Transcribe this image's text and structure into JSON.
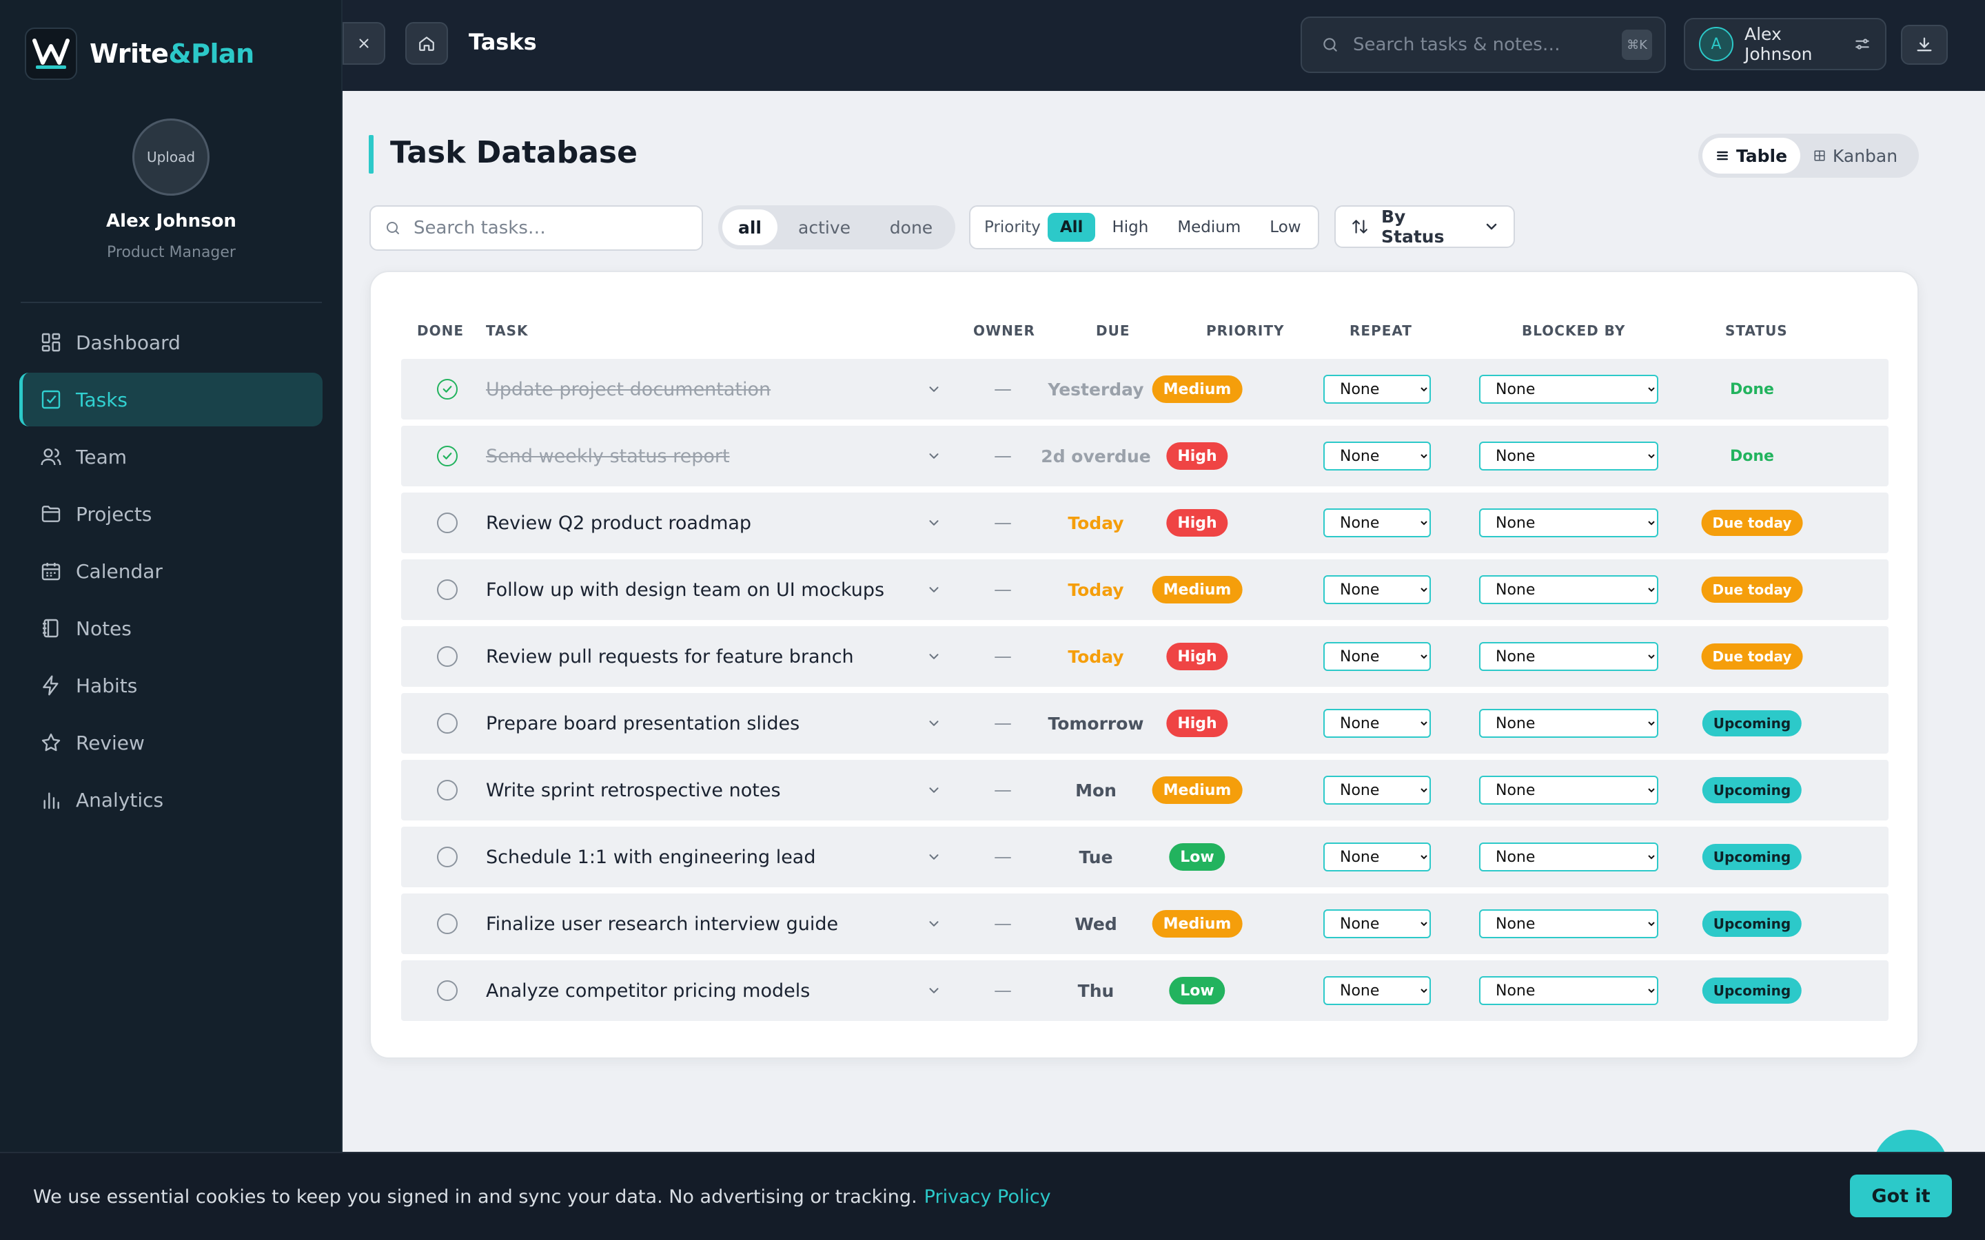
{
  "brand": {
    "name_part1": "Write",
    "name_part2": "&Plan"
  },
  "profile": {
    "upload_label": "Upload",
    "name": "Alex Johnson",
    "role": "Product Manager"
  },
  "sidebar": {
    "items": [
      {
        "label": "Dashboard",
        "icon": "grid-icon"
      },
      {
        "label": "Tasks",
        "icon": "checkbox-icon",
        "active": true
      },
      {
        "label": "Team",
        "icon": "users-icon"
      },
      {
        "label": "Projects",
        "icon": "folder-icon"
      },
      {
        "label": "Calendar",
        "icon": "calendar-icon"
      },
      {
        "label": "Notes",
        "icon": "notebook-icon"
      },
      {
        "label": "Habits",
        "icon": "bolt-icon"
      },
      {
        "label": "Review",
        "icon": "star-icon"
      },
      {
        "label": "Analytics",
        "icon": "bar-chart-icon"
      }
    ]
  },
  "topbar": {
    "title": "Tasks",
    "search_placeholder": "Search tasks & notes…",
    "search_shortcut": "⌘K",
    "user_initial": "A",
    "user_name": "Alex Johnson"
  },
  "main": {
    "heading": "Task Database",
    "view_toggle": {
      "table": "Table",
      "kanban": "Kanban",
      "selected": "Table"
    },
    "search_placeholder": "Search tasks…",
    "state_filter": {
      "all": "all",
      "active": "active",
      "done": "done",
      "selected": "all"
    },
    "priority_filter": {
      "label": "Priority",
      "all": "All",
      "high": "High",
      "medium": "Medium",
      "low": "Low",
      "selected": "All"
    },
    "sort_label": "By Status"
  },
  "table": {
    "headers": {
      "done": "DONE",
      "task": "TASK",
      "owner": "OWNER",
      "due": "DUE",
      "priority": "PRIORITY",
      "repeat": "REPEAT",
      "blocked_by": "BLOCKED BY",
      "status": "STATUS"
    },
    "rows": [
      {
        "done": true,
        "task": "Update project documentation",
        "owner": "—",
        "due": "Yesterday",
        "due_tone": "muted",
        "priority": "Medium",
        "repeat": "None",
        "blocked_by": "None",
        "status": "Done",
        "status_kind": "done"
      },
      {
        "done": true,
        "task": "Send weekly status report",
        "owner": "—",
        "due": "2d overdue",
        "due_tone": "muted",
        "priority": "High",
        "repeat": "None",
        "blocked_by": "None",
        "status": "Done",
        "status_kind": "done"
      },
      {
        "done": false,
        "task": "Review Q2 product roadmap",
        "owner": "—",
        "due": "Today",
        "due_tone": "today",
        "priority": "High",
        "repeat": "None",
        "blocked_by": "None",
        "status": "Due today",
        "status_kind": "today"
      },
      {
        "done": false,
        "task": "Follow up with design team on UI mockups",
        "owner": "—",
        "due": "Today",
        "due_tone": "today",
        "priority": "Medium",
        "repeat": "None",
        "blocked_by": "None",
        "status": "Due today",
        "status_kind": "today"
      },
      {
        "done": false,
        "task": "Review pull requests for feature branch",
        "owner": "—",
        "due": "Today",
        "due_tone": "today",
        "priority": "High",
        "repeat": "None",
        "blocked_by": "None",
        "status": "Due today",
        "status_kind": "today"
      },
      {
        "done": false,
        "task": "Prepare board presentation slides",
        "owner": "—",
        "due": "Tomorrow",
        "due_tone": "normal",
        "priority": "High",
        "repeat": "None",
        "blocked_by": "None",
        "status": "Upcoming",
        "status_kind": "upcoming"
      },
      {
        "done": false,
        "task": "Write sprint retrospective notes",
        "owner": "—",
        "due": "Mon",
        "due_tone": "normal",
        "priority": "Medium",
        "repeat": "None",
        "blocked_by": "None",
        "status": "Upcoming",
        "status_kind": "upcoming"
      },
      {
        "done": false,
        "task": "Schedule 1:1 with engineering lead",
        "owner": "—",
        "due": "Tue",
        "due_tone": "normal",
        "priority": "Low",
        "repeat": "None",
        "blocked_by": "None",
        "status": "Upcoming",
        "status_kind": "upcoming"
      },
      {
        "done": false,
        "task": "Finalize user research interview guide",
        "owner": "—",
        "due": "Wed",
        "due_tone": "normal",
        "priority": "Medium",
        "repeat": "None",
        "blocked_by": "None",
        "status": "Upcoming",
        "status_kind": "upcoming"
      },
      {
        "done": false,
        "task": "Analyze competitor pricing models",
        "owner": "—",
        "due": "Thu",
        "due_tone": "normal",
        "priority": "Low",
        "repeat": "None",
        "blocked_by": "None",
        "status": "Upcoming",
        "status_kind": "upcoming"
      }
    ]
  },
  "cookie": {
    "text": "We use essential cookies to keep you signed in and sync your data. No advertising or tracking.",
    "link": "Privacy Policy",
    "button": "Got it"
  },
  "colors": {
    "accent": "#2cc9c9",
    "sidebar_bg": "#14202b",
    "high": "#ef4444",
    "medium": "#f59e0b",
    "low": "#22b35e",
    "today": "#f59e0b"
  }
}
